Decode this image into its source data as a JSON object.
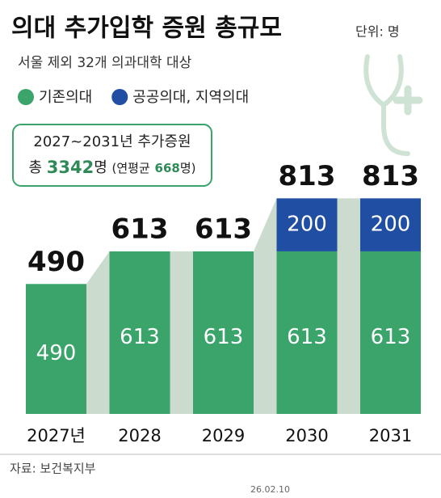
{
  "chart_data": {
    "type": "stacked_bar",
    "title": "의대 추가입학 증원 총규모",
    "unit_note": "단위: 명",
    "subtitle": "서울 제외 32개 의과대학 대상",
    "categories": [
      "2027년",
      "2028",
      "2029",
      "2030",
      "2031"
    ],
    "series": [
      {
        "name": "기존의대",
        "color": "#3aa46a",
        "values": [
          490,
          613,
          613,
          613,
          613
        ]
      },
      {
        "name": "공공의대, 지역의대",
        "color": "#1f4ea3",
        "values": [
          null,
          null,
          null,
          200,
          200
        ]
      }
    ],
    "totals": [
      490,
      613,
      613,
      813,
      813
    ],
    "ylim": [
      0,
      1000
    ],
    "box": {
      "title": "2027~2031년 추가증원",
      "total_label": "총",
      "total": 3342,
      "total_unit": "명",
      "avg_label": "(연평균",
      "avg": 668,
      "avg_unit": "명)"
    },
    "source": "자료: 보건복지부",
    "credit": "26.02.10"
  }
}
